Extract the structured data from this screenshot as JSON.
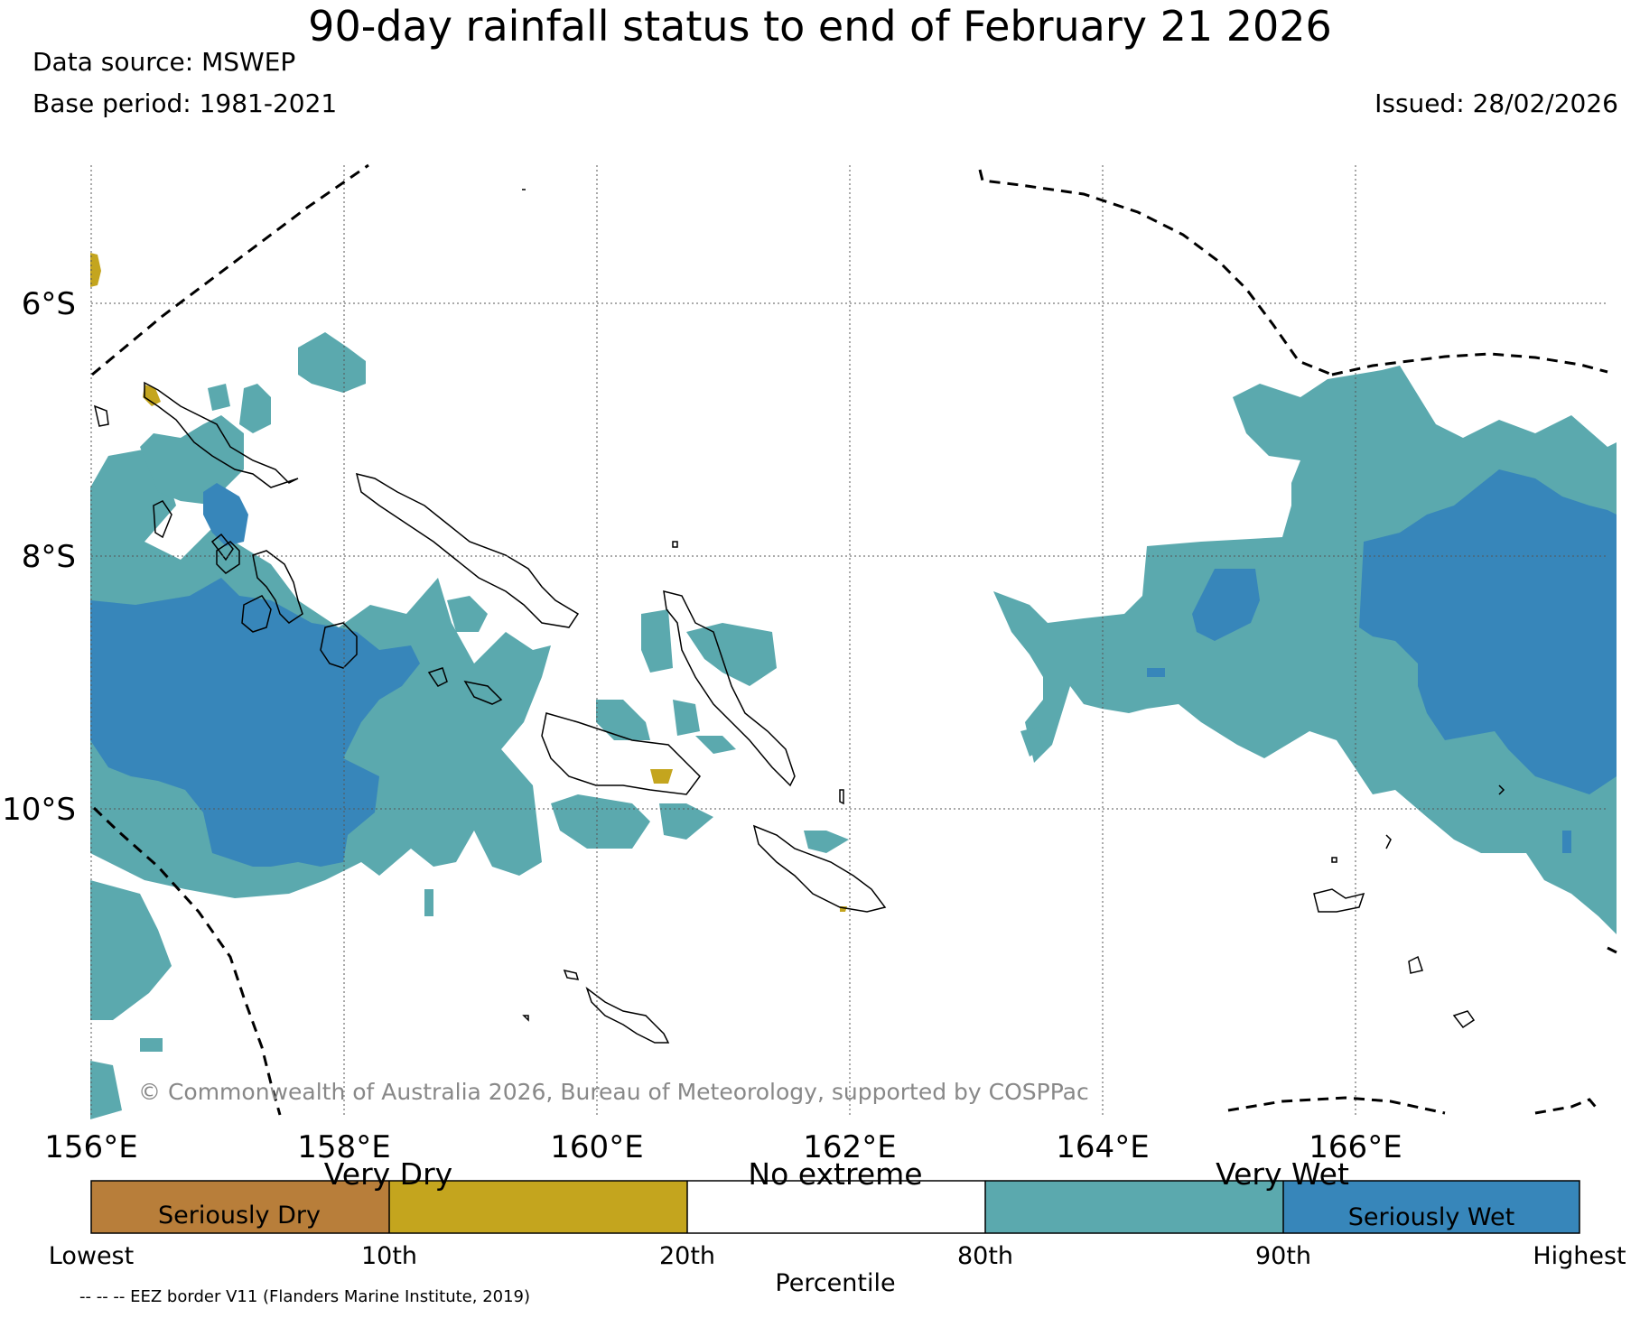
{
  "header": {
    "title": "90-day rainfall status to end of February 21 2026",
    "data_source": "Data source: MSWEP",
    "base_period": "Base period: 1981-2021",
    "issued": "Issued: 28/02/2026"
  },
  "map": {
    "lon_labels": [
      "156°E",
      "158°E",
      "160°E",
      "162°E",
      "164°E",
      "166°E"
    ],
    "lat_labels": [
      "6°S",
      "8°S",
      "10°S"
    ],
    "copyright": "© Commonwealth of Australia 2026, Bureau of Meteorology, supported by COSPPac",
    "eez_note": "-- -- -- EEZ border V11 (Flanders Marine Institute, 2019)"
  },
  "legend": {
    "categories": [
      {
        "label": "Seriously Dry",
        "color": "#b87e3a"
      },
      {
        "label": "",
        "color": "#c4a51e"
      },
      {
        "label": "",
        "color": "#ffffff"
      },
      {
        "label": "",
        "color": "#5ba9ae"
      },
      {
        "label": "Seriously Wet",
        "color": "#3786ba"
      }
    ],
    "group_labels": [
      "Very Dry",
      "No extreme",
      "Very Wet"
    ],
    "ticks": [
      "Lowest",
      "10th",
      "20th",
      "80th",
      "90th",
      "Highest"
    ],
    "axis_label": "Percentile"
  },
  "colors": {
    "very_wet": "#5ba9ae",
    "seriously_wet": "#3786ba",
    "very_dry": "#c4a51e",
    "seriously_dry": "#b87e3a",
    "grid": "#555555",
    "eez": "#000000"
  }
}
